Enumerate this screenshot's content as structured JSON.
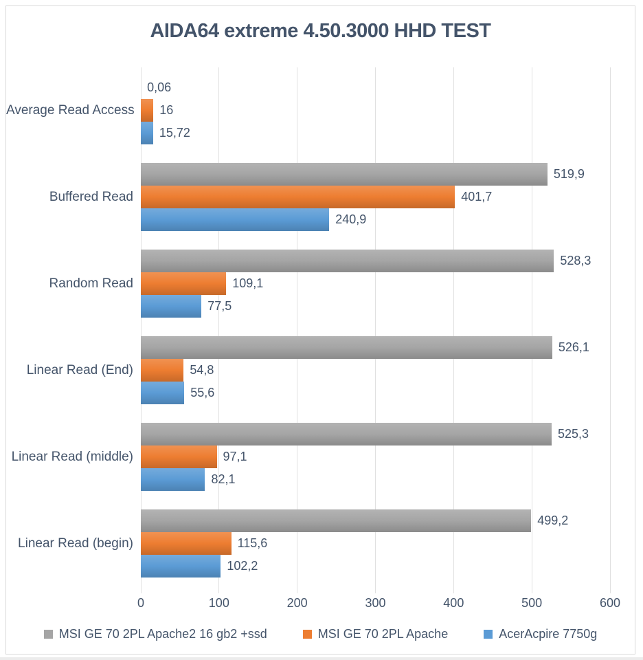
{
  "title": "AIDA64 extreme 4.50.3000 HHD TEST",
  "colors": {
    "title_text": "#44546a",
    "axis_text": "#44546a",
    "gridline": "#e0e0e0",
    "frame_border": "#d9d9d9",
    "background": "#ffffff",
    "series_gray": "#a5a5a5",
    "series_orange": "#ed7d31",
    "series_blue": "#5b9bd5"
  },
  "chart_data": {
    "type": "bar",
    "orientation": "horizontal",
    "title": "AIDA64 extreme 4.50.3000 HHD TEST",
    "categories": [
      "Average Read Access",
      "Buffered Read",
      "Random Read",
      "Linear Read (End)",
      "Linear Read (middle)",
      "Linear Read (begin)"
    ],
    "series": [
      {
        "name": "MSI GE 70 2PL Apache2 16 gb2 +ssd",
        "color": "#a5a5a5",
        "values": [
          0.06,
          519.9,
          528.3,
          526.1,
          525.3,
          499.2
        ],
        "labels": [
          "0,06",
          "519,9",
          "528,3",
          "526,1",
          "525,3",
          "499,2"
        ]
      },
      {
        "name": "MSI GE 70 2PL Apache",
        "color": "#ed7d31",
        "values": [
          16,
          401.7,
          109.1,
          54.8,
          97.1,
          115.6
        ],
        "labels": [
          "16",
          "401,7",
          "109,1",
          "54,8",
          "97,1",
          "115,6"
        ]
      },
      {
        "name": "AcerAcpire 7750g",
        "color": "#5b9bd5",
        "values": [
          15.72,
          240.9,
          77.5,
          55.6,
          82.1,
          102.2
        ],
        "labels": [
          "15,72",
          "240,9",
          "77,5",
          "55,6",
          "82,1",
          "102,2"
        ]
      }
    ],
    "xlabel": "",
    "ylabel": "",
    "xlim": [
      0,
      600
    ],
    "x_ticks": [
      0,
      100,
      200,
      300,
      400,
      500,
      600
    ],
    "grid": "vertical",
    "legend_position": "bottom",
    "decimal_separator": ","
  }
}
